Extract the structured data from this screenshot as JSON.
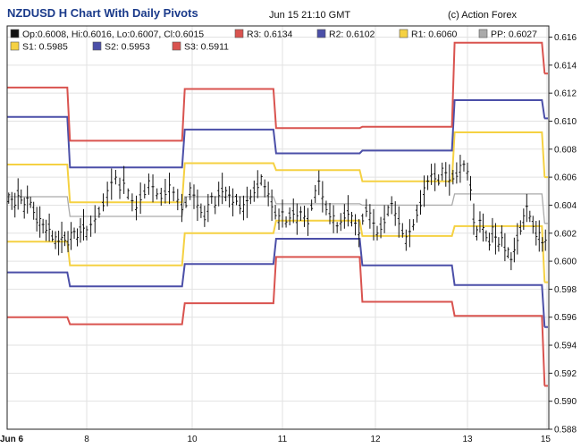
{
  "header": {
    "title": "NZDUSD H Chart With Daily Pivots",
    "timestamp": "Jun 15 21:10 GMT",
    "credit": "(c) Action Forex"
  },
  "legend": [
    {
      "key": "ohlc",
      "label": "Op:0.6008, Hi:0.6016, Lo:0.6007, Cl:0.6015",
      "color": "#111111"
    },
    {
      "key": "r3",
      "label": "R3: 0.6134",
      "color": "#d9534f"
    },
    {
      "key": "r2",
      "label": "R2: 0.6102",
      "color": "#4b4fa8"
    },
    {
      "key": "r1",
      "label": "R1: 0.6060",
      "color": "#f5d142"
    },
    {
      "key": "pp",
      "label": "PP: 0.6027",
      "color": "#aaaaaa"
    },
    {
      "key": "s1",
      "label": "S1: 0.5985",
      "color": "#f5d142"
    },
    {
      "key": "s2",
      "label": "S2: 0.5953",
      "color": "#4b4fa8"
    },
    {
      "key": "s3",
      "label": "S3: 0.5911",
      "color": "#d9534f"
    }
  ],
  "chart_data": {
    "type": "line",
    "title": "NZDUSD H Chart With Daily Pivots",
    "y_ticks": [
      "0.616",
      "0.614",
      "0.612",
      "0.610",
      "0.608",
      "0.606",
      "0.604",
      "0.602",
      "0.600",
      "0.598",
      "0.596",
      "0.594",
      "0.592",
      "0.590",
      "0.588"
    ],
    "ylim": [
      0.588,
      0.6168
    ],
    "x_labels": [
      {
        "label": "Jun 6",
        "x": 0,
        "bold": true
      },
      {
        "label": "8",
        "x": 1
      },
      {
        "label": "10",
        "x": 2
      },
      {
        "label": "11",
        "x": 3
      },
      {
        "label": "12",
        "x": 4
      },
      {
        "label": "13",
        "x": 5
      },
      {
        "label": "15",
        "x": 6
      }
    ],
    "xlim": [
      0,
      6
    ],
    "day_boundaries": [
      0.79,
      1.93,
      2.93,
      3.86,
      4.86,
      5.97
    ],
    "pivots": {
      "r3": [
        0.6124,
        0.6086,
        0.6123,
        0.6095,
        0.6096,
        0.6156,
        0.6134
      ],
      "r2": [
        0.6103,
        0.6067,
        0.6094,
        0.6077,
        0.6079,
        0.6115,
        0.6102
      ],
      "r1": [
        0.6069,
        0.6042,
        0.607,
        0.6065,
        0.6057,
        0.6092,
        0.606
      ],
      "pp": [
        0.6046,
        0.6032,
        0.6046,
        0.6041,
        0.604,
        0.6048,
        0.6027
      ],
      "s1": [
        0.6014,
        0.5997,
        0.602,
        0.6029,
        0.6018,
        0.6025,
        0.5985
      ],
      "s2": [
        0.5992,
        0.5982,
        0.5998,
        0.6016,
        0.5997,
        0.5983,
        0.5953
      ],
      "s3": [
        0.596,
        0.5955,
        0.597,
        0.6003,
        0.5971,
        0.5961,
        0.5911
      ]
    },
    "candles_shape": [
      0.6045,
      0.6043,
      0.604,
      0.6048,
      0.6046,
      0.6038,
      0.6044,
      0.6042,
      0.6036,
      0.603,
      0.6028,
      0.6025,
      0.6022,
      0.6024,
      0.6018,
      0.6015,
      0.6013,
      0.6017,
      0.6016,
      0.6014,
      0.6018,
      0.602,
      0.6017,
      0.6022,
      0.6026,
      0.602,
      0.6025,
      0.603,
      0.6035,
      0.6042,
      0.6048,
      0.6055,
      0.606,
      0.6052,
      0.6058,
      0.6048,
      0.6042,
      0.6038,
      0.6045,
      0.605,
      0.6055,
      0.6052,
      0.6048,
      0.6046,
      0.605,
      0.6052,
      0.6048,
      0.6044,
      0.6038,
      0.6042,
      0.605,
      0.6046,
      0.604,
      0.6036,
      0.6032,
      0.6038,
      0.6045,
      0.604,
      0.6048,
      0.6052,
      0.6048,
      0.6046,
      0.6042,
      0.6044,
      0.604,
      0.6038,
      0.6042,
      0.6046,
      0.605,
      0.6055,
      0.6058,
      0.6052,
      0.6048,
      0.604,
      0.6035,
      0.603,
      0.6034,
      0.6028,
      0.6032,
      0.6036,
      0.603,
      0.6034,
      0.6032,
      0.6028,
      0.604,
      0.6048,
      0.6056,
      0.6046,
      0.6038,
      0.6034,
      0.603,
      0.6024,
      0.6028,
      0.6032,
      0.6036,
      0.603,
      0.6026,
      0.602,
      0.603,
      0.6038,
      0.6032,
      0.6026,
      0.602,
      0.6024,
      0.603,
      0.6036,
      0.604,
      0.6034,
      0.6028,
      0.6022,
      0.6015,
      0.602,
      0.6026,
      0.6034,
      0.6042,
      0.605,
      0.6056,
      0.6062,
      0.606,
      0.6058,
      0.6064,
      0.6062,
      0.6058,
      0.606,
      0.6063,
      0.6066,
      0.6068,
      0.6064,
      0.6052,
      0.603,
      0.602,
      0.6028,
      0.6024,
      0.6018,
      0.6014,
      0.6022,
      0.6016,
      0.6012,
      0.6018,
      0.601,
      0.6006,
      0.6,
      0.6008,
      0.6016,
      0.6024,
      0.603,
      0.6038,
      0.6032,
      0.6026,
      0.602,
      0.6018,
      0.6012,
      0.6015
    ],
    "grid": true,
    "y_axis_side": "right"
  }
}
